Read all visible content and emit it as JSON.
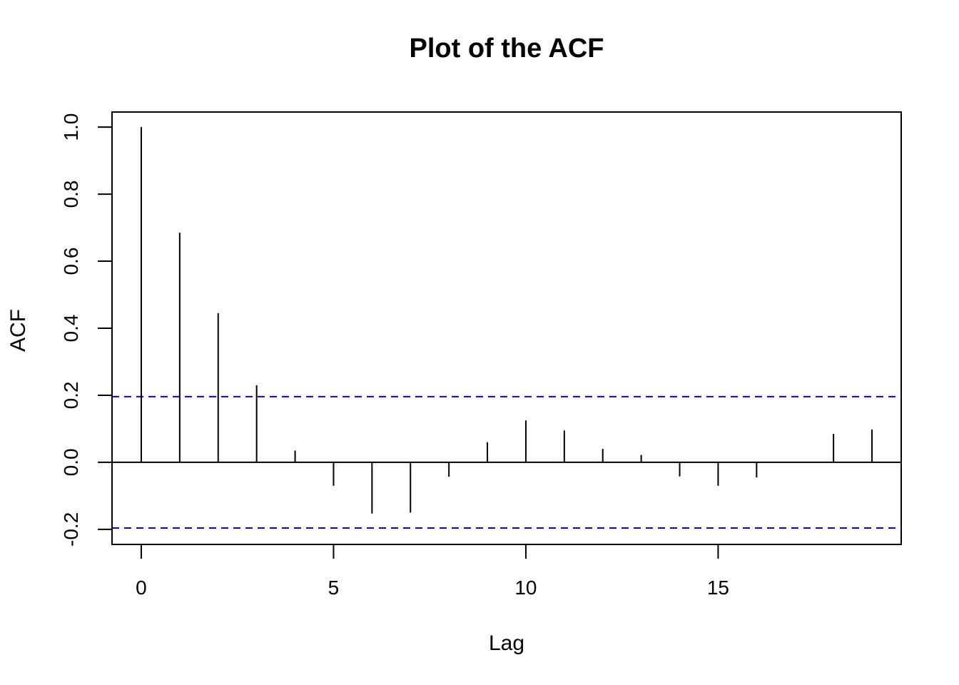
{
  "chart_data": {
    "type": "bar",
    "subtype": "acf-stem",
    "title": "Plot of the ACF",
    "xlabel": "Lag",
    "ylabel": "ACF",
    "x": [
      0,
      1,
      2,
      3,
      4,
      5,
      6,
      7,
      8,
      9,
      10,
      11,
      12,
      13,
      14,
      15,
      16,
      17,
      18,
      19
    ],
    "values": [
      1.0,
      0.685,
      0.445,
      0.23,
      0.035,
      -0.07,
      -0.153,
      -0.15,
      -0.043,
      0.06,
      0.125,
      0.095,
      0.04,
      0.022,
      -0.042,
      -0.07,
      -0.045,
      0.002,
      0.085,
      0.098
    ],
    "confidence_bound": 0.196,
    "confidence_color": "#0000FF",
    "xlim": [
      -0.76,
      19.76
    ],
    "ylim": [
      -0.245,
      1.045
    ],
    "xticks": [
      "0",
      "5",
      "10",
      "15"
    ],
    "yticks": [
      "-0.2",
      "0.0",
      "0.2",
      "0.4",
      "0.6",
      "0.8",
      "1.0"
    ],
    "grid": false,
    "legend": "none"
  }
}
